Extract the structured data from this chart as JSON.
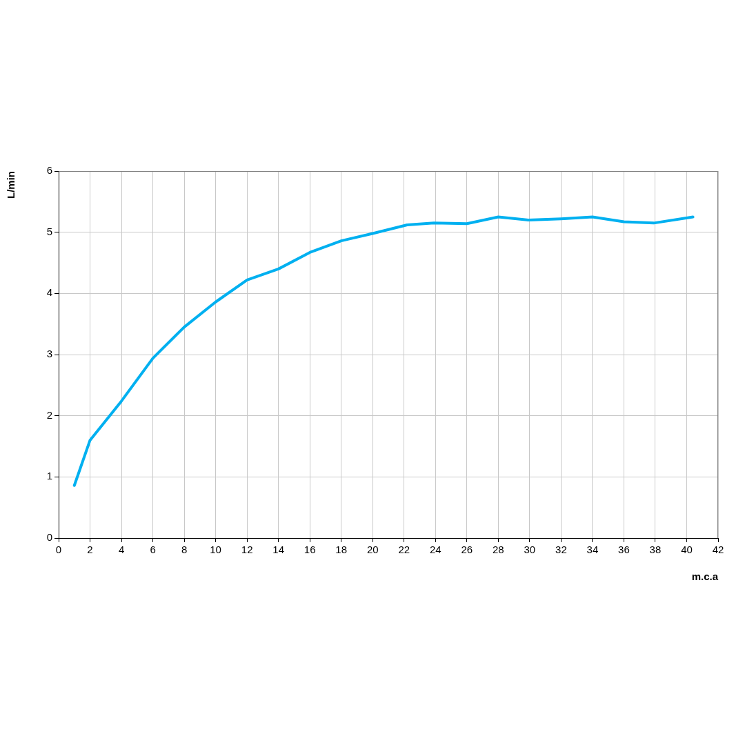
{
  "chart_data": {
    "type": "line",
    "xlabel": "m.c.a",
    "ylabel": "L/min",
    "series": [
      {
        "color": "#00b0f0",
        "x": [
          1,
          2,
          4,
          6,
          8,
          10,
          12,
          14,
          16,
          18,
          20,
          22.2,
          23.9,
          26,
          28,
          29.9,
          32,
          34,
          36,
          37.9,
          40.4
        ],
        "values": [
          0.86,
          1.6,
          2.24,
          2.94,
          3.45,
          3.86,
          4.22,
          4.4,
          4.67,
          4.86,
          4.98,
          5.12,
          5.15,
          5.14,
          5.25,
          5.2,
          5.22,
          5.25,
          5.17,
          5.15,
          5.25
        ]
      }
    ],
    "xlim": [
      0,
      42
    ],
    "xticks": [
      0,
      2,
      4,
      6,
      8,
      10,
      12,
      14,
      16,
      18,
      20,
      22,
      24,
      26,
      28,
      30,
      32,
      34,
      36,
      38,
      40,
      42
    ],
    "ylim": [
      0,
      6
    ],
    "yticks": [
      0,
      1,
      2,
      3,
      4,
      5,
      6
    ],
    "grid": true,
    "legend": false,
    "marker": "none",
    "line_style": "solid"
  }
}
